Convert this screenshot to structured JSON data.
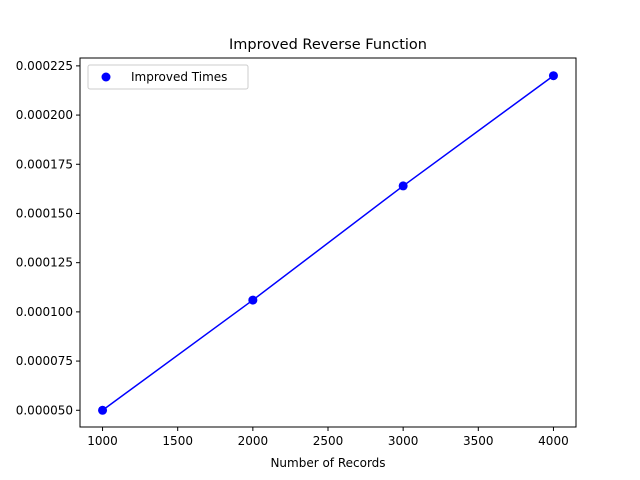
{
  "chart_data": {
    "type": "scatter",
    "title": "Improved Reverse Function",
    "xlabel": "Number of Records",
    "ylabel": "",
    "xlim": [
      850,
      4150
    ],
    "ylim": [
      4.15e-05,
      0.000229
    ],
    "x_ticks": [
      1000,
      1500,
      2000,
      2500,
      3000,
      3500,
      4000
    ],
    "x_tick_labels": [
      "1000",
      "1500",
      "2000",
      "2500",
      "3000",
      "3500",
      "4000"
    ],
    "y_ticks": [
      5e-05,
      7.5e-05,
      0.0001,
      0.000125,
      0.00015,
      0.000175,
      0.0002,
      0.000225
    ],
    "y_tick_labels": [
      "0.000050",
      "0.000075",
      "0.000100",
      "0.000125",
      "0.000150",
      "0.000175",
      "0.000200",
      "0.000225"
    ],
    "grid": false,
    "legend": {
      "position": "top-left",
      "entries": [
        "Improved Times"
      ]
    },
    "series": [
      {
        "name": "Improved Times",
        "color": "#0000ff",
        "marker": "circle",
        "connect_line": true,
        "x": [
          1000,
          2000,
          3000,
          4000
        ],
        "y": [
          5e-05,
          0.000106,
          0.000164,
          0.00022
        ]
      }
    ]
  }
}
